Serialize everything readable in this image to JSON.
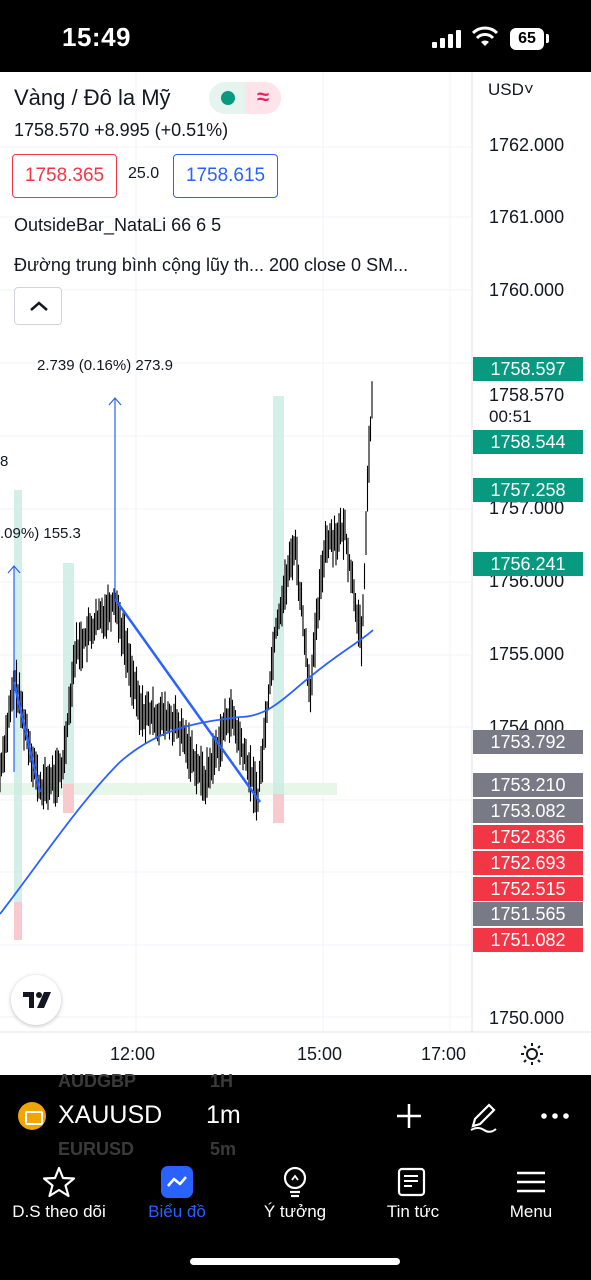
{
  "status_bar": {
    "time": "15:49",
    "battery": "65"
  },
  "header": {
    "title": "Vàng / Đô la Mỹ",
    "quote": "1758.570  +8.995 (+0.51%)",
    "bid": "1758.365",
    "spread": "25.0",
    "ask": "1758.615",
    "indicator_1": "OutsideBar_NataLi 66 6 5",
    "indicator_2": "Đường trung bình cộng lũy th...   200 close 0 SM...",
    "status_icon": "≈"
  },
  "chart_labels": {
    "measure_1": "2.739 (0.16%) 273.9",
    "measure_2": ".09%) 155.3",
    "measure_3": "8"
  },
  "price_axis": {
    "currency": "USD",
    "currency_chevron": "˅",
    "labels": [
      "1762.000",
      "1761.000",
      "1760.000",
      "1757.000",
      "1756.000",
      "1755.000",
      "1754.000",
      "1750.000"
    ],
    "last_price": "1758.570",
    "countdown": "00:51",
    "tags": [
      {
        "text": "1758.597",
        "color": "green"
      },
      {
        "text": "1758.544",
        "color": "green"
      },
      {
        "text": "1757.258",
        "color": "green"
      },
      {
        "text": "1756.241",
        "color": "green"
      },
      {
        "text": "1753.792",
        "color": "gray"
      },
      {
        "text": "1753.210",
        "color": "gray"
      },
      {
        "text": "1753.082",
        "color": "gray"
      },
      {
        "text": "1752.836",
        "color": "red"
      },
      {
        "text": "1752.693",
        "color": "red"
      },
      {
        "text": "1752.515",
        "color": "red"
      },
      {
        "text": "1751.565",
        "color": "gray"
      },
      {
        "text": "1751.082",
        "color": "red"
      }
    ]
  },
  "time_axis": {
    "labels": [
      "12:00",
      "15:00",
      "17:00"
    ]
  },
  "toolbar": {
    "symbol": "XAUUSD",
    "interval": "1m",
    "ghost_top": [
      "AUDGBP",
      "1H"
    ],
    "ghost_bottom": [
      "EURUSD",
      "5m"
    ]
  },
  "nav": {
    "items": [
      {
        "label": "D.S theo dõi"
      },
      {
        "label": "Biểu đồ"
      },
      {
        "label": "Ý tưởng"
      },
      {
        "label": "Tin tức"
      },
      {
        "label": "Menu"
      }
    ]
  },
  "colors": {
    "green": "#089981",
    "red": "#f23645",
    "gray": "#787b86",
    "blue": "#2962ff",
    "candle": "#000000",
    "ma_line": "#2962ff"
  }
}
